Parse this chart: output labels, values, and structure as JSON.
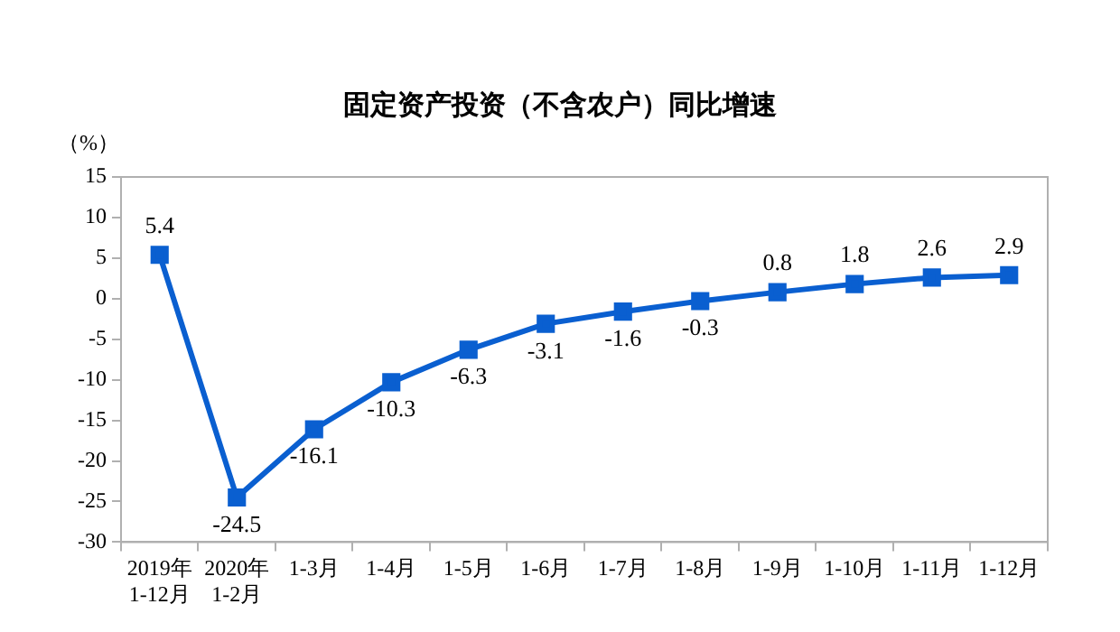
{
  "chart_data": {
    "type": "line",
    "title": "固定资产投资（不含农户）同比增速",
    "ylabel": "（%）",
    "categories": [
      "2019年\n1-12月",
      "2020年\n1-2月",
      "1-3月",
      "1-4月",
      "1-5月",
      "1-6月",
      "1-7月",
      "1-8月",
      "1-9月",
      "1-10月",
      "1-11月",
      "1-12月"
    ],
    "series": [
      {
        "color": "#0a5fd0",
        "values": [
          5.4,
          -24.5,
          -16.1,
          -10.3,
          -6.3,
          -3.1,
          -1.6,
          -0.3,
          0.8,
          1.8,
          2.6,
          2.9
        ]
      }
    ],
    "ylim": [
      -30,
      15
    ],
    "yticks": [
      -30,
      -25,
      -20,
      -15,
      -10,
      -5,
      0,
      5,
      10,
      15
    ],
    "grid": false,
    "legend": false,
    "marker": "square",
    "line_style": "solid",
    "data_labels": true
  }
}
